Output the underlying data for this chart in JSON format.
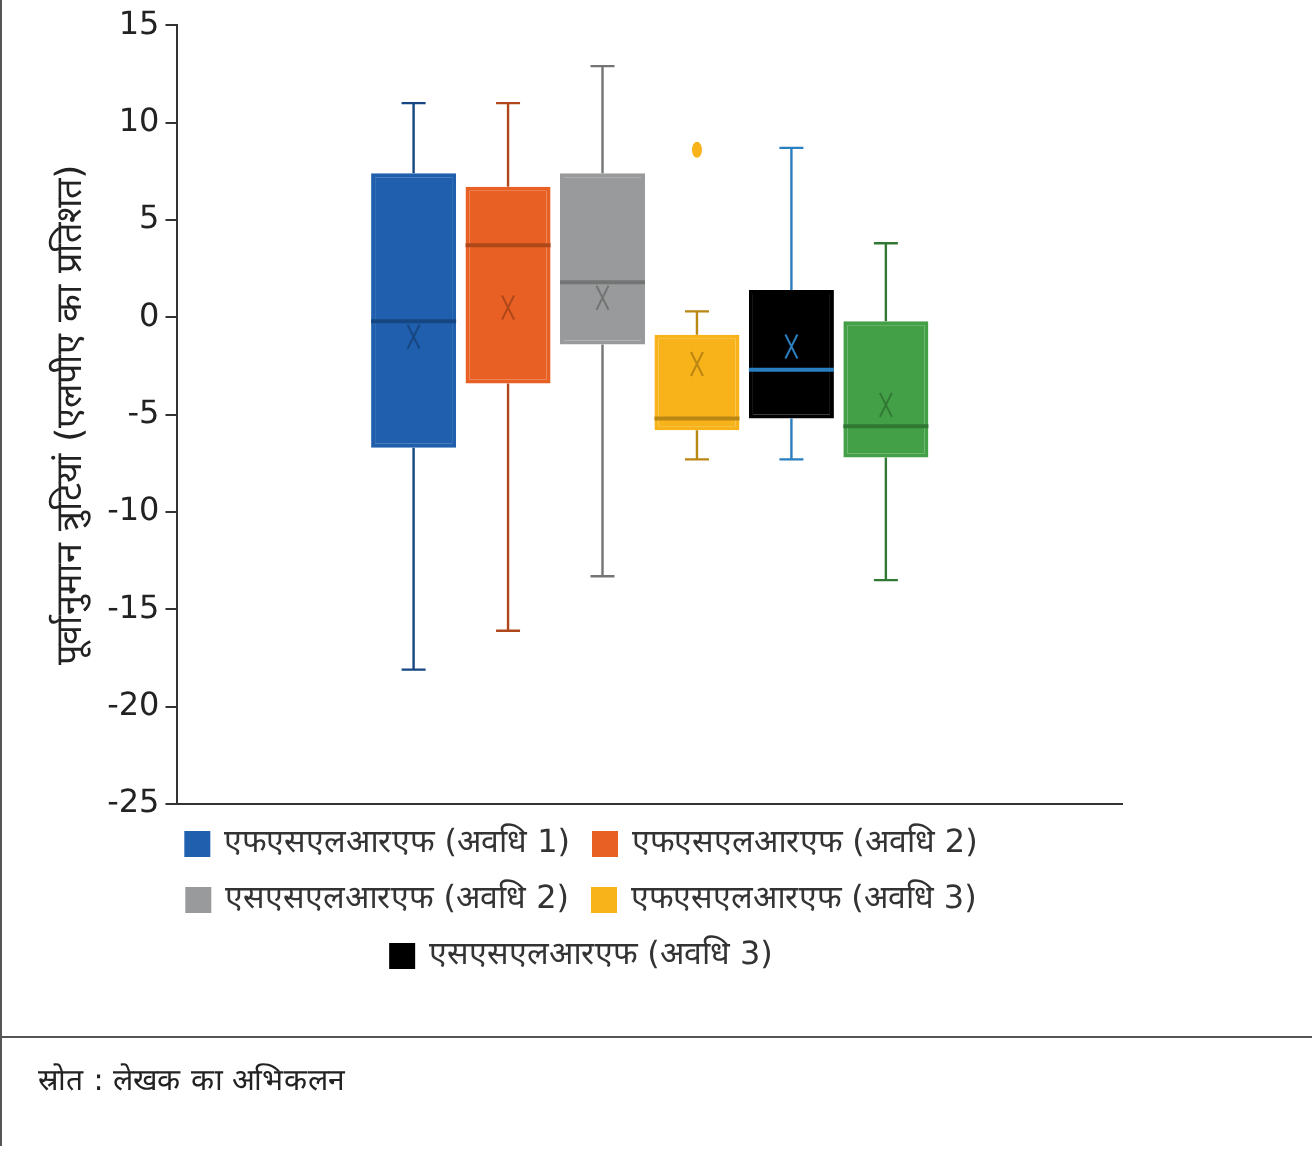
{
  "chart_data": {
    "type": "box",
    "ylabel": "पूर्वानुमान त्रुटियां (एलपीए का प्रतिशत)",
    "categories": [
      null
    ],
    "ylim": [
      -25,
      15
    ],
    "yticks": [
      -25,
      -20,
      -15,
      -10,
      -5,
      0,
      5,
      10,
      15
    ],
    "grid": false,
    "legend": "bottom",
    "tick_labels": "y",
    "series": [
      {
        "name": "एफएसएलआरएफ (अवधि 1)",
        "color": "#1f5fad",
        "boxes": [
          {
            "low": -18.1,
            "q1": -6.7,
            "median": -0.2,
            "q3": 7.4,
            "high": 11,
            "mean": -1
          }
        ]
      },
      {
        "name": "एफएसएलआरएफ (अवधि 2)",
        "color": "#e86024",
        "boxes": [
          {
            "low": -16.1,
            "q1": -3.4,
            "median": 3.7,
            "q3": 6.7,
            "high": 11,
            "mean": 0.5
          }
        ]
      },
      {
        "name": "एसएसएलआरएफ (अवधि 2)",
        "color": "#999a9b",
        "boxes": [
          {
            "low": -13.3,
            "q1": -1.4,
            "median": 1.8,
            "q3": 7.4,
            "high": 12.9,
            "mean": 1
          }
        ]
      },
      {
        "name": "एफएसएलआरएफ (अवधि 3)",
        "color": "#f8b31a",
        "boxes": [
          {
            "low": -7.3,
            "q1": -5.8,
            "median": -5.2,
            "q3": -0.9,
            "high": 0.3,
            "mean": -2.4,
            "outliers": [
              8.6
            ]
          }
        ]
      },
      {
        "name": "एसएसएलआरएफ (अवधि 3)",
        "color": "#000000",
        "boxes": [
          {
            "low": -7.3,
            "q1": -5.2,
            "median": -2.7,
            "q3": 1.4,
            "high": 8.7,
            "mean": -1.5
          }
        ]
      },
      {
        "color": "#43a047",
        "boxes": [
          {
            "low": -13.5,
            "q1": -7.2,
            "median": -5.6,
            "q3": -0.2,
            "high": 3.8,
            "mean": -4.5
          }
        ]
      }
    ],
    "annotations": [
      "स्रोत : लेखक का अभिकलन"
    ]
  }
}
